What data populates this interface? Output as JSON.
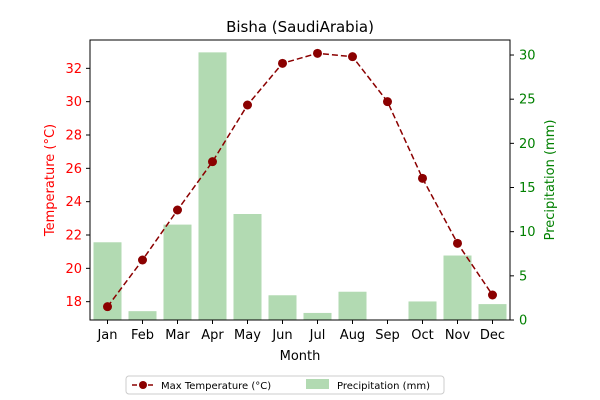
{
  "chart_data": {
    "type": "bar+line",
    "title": "Bisha (SaudiArabia)",
    "xlabel": "Month",
    "categories": [
      "Jan",
      "Feb",
      "Mar",
      "Apr",
      "May",
      "Jun",
      "Jul",
      "Aug",
      "Sep",
      "Oct",
      "Nov",
      "Dec"
    ],
    "y_left": {
      "label": "Temperature (°C)",
      "color": "#ff0000",
      "lim": [
        16.9,
        33.7
      ],
      "ticks": [
        18,
        20,
        22,
        24,
        26,
        28,
        30,
        32
      ]
    },
    "y_right": {
      "label": "Precipitation (mm)",
      "color": "#008000",
      "lim": [
        0,
        31.7
      ],
      "ticks": [
        0,
        5,
        10,
        15,
        20,
        25,
        30
      ]
    },
    "series": [
      {
        "name": "Max Temperature (°C)",
        "type": "line",
        "axis": "left",
        "color": "#8b0000",
        "style": "dashed, circle markers",
        "values": [
          17.7,
          20.5,
          23.5,
          26.4,
          29.8,
          32.3,
          32.9,
          32.7,
          30.0,
          25.4,
          21.5,
          18.4
        ]
      },
      {
        "name": "Precipitation (mm)",
        "type": "bar",
        "axis": "right",
        "color": "#b2dab2",
        "values": [
          8.8,
          1.0,
          10.8,
          30.3,
          12.0,
          2.8,
          0.8,
          3.2,
          0.0,
          2.1,
          7.3,
          1.8
        ]
      }
    ],
    "legend": {
      "placement": "bottom-center"
    },
    "grid": false
  }
}
